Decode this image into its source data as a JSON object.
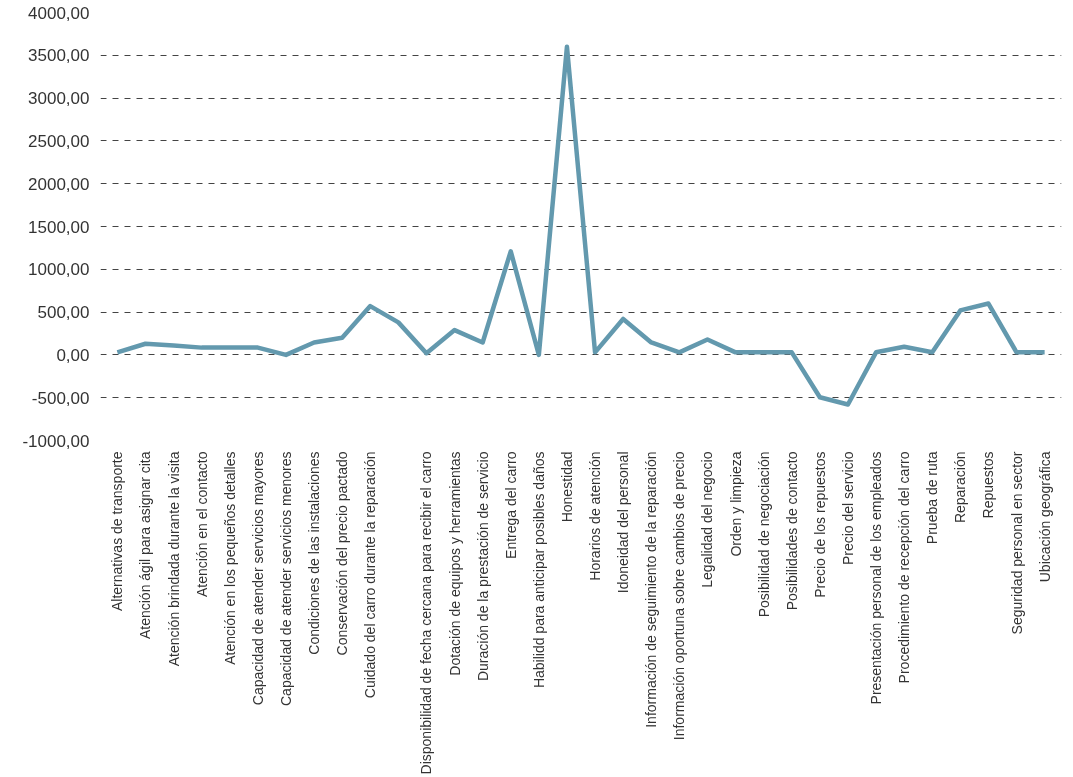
{
  "chart_data": {
    "type": "line",
    "categories": [
      "Alternativas de transporte",
      "Atención ágil para asignar cita",
      "Atención brindada durante la visita",
      "Atención en el contacto",
      "Atención en los pequeños detalles",
      "Capacidad de atender servicios mayores",
      "Capacidad de atender servicios menores",
      "Condiciones de las instalaciones",
      "Conservación del precio pactado",
      "Cuidado del carro durante la reparación",
      null,
      "Disponibilidad de fecha cercana para recibir el carro",
      "Dotación de equipos y herramientas",
      "Duración de la prestación de servicio",
      "Entrega del carro",
      "Habilidd para anticipar posibles daños",
      "Honestidad",
      "Horarios de atención",
      "Idoneidad del personal",
      "Información de seguimiento de la reparación",
      "Información oportuna sobre cambios de precio",
      "Legalidad del negocio",
      "Orden y limpieza",
      "Posibilidad de negociación",
      "Posibilidades de contacto",
      "Precio de los repuestos",
      "Precio del servicio",
      "Presentación personal de los empleados",
      "Procedimiento de recepción del carro",
      "Prueba de ruta",
      "Reparación",
      "Repuestos",
      "Seguridad personal en sector",
      "Ubicación geográfica"
    ],
    "series": [
      {
        "color": "#6399ae",
        "values": [
          30,
          130,
          110,
          85,
          85,
          85,
          0,
          145,
          200,
          570,
          380,
          20,
          290,
          145,
          1210,
          0,
          3600,
          30,
          420,
          145,
          30,
          180,
          30,
          30,
          30,
          -495,
          -580,
          30,
          95,
          30,
          520,
          600,
          30,
          30
        ]
      }
    ],
    "ylim": [
      -1000,
      4000
    ],
    "yticks": [
      {
        "value": -1000,
        "label": "-1000,00"
      },
      {
        "value": -500,
        "label": "-500,00"
      },
      {
        "value": 0,
        "label": "0,00"
      },
      {
        "value": 500,
        "label": "500,00"
      },
      {
        "value": 1000,
        "label": "1000,00"
      },
      {
        "value": 1500,
        "label": "1500,00"
      },
      {
        "value": 2000,
        "label": "2000,00"
      },
      {
        "value": 2500,
        "label": "2500,00"
      },
      {
        "value": 3000,
        "label": "3000,00"
      },
      {
        "value": 3500,
        "label": "3500,00"
      },
      {
        "value": 4000,
        "label": "4000,00"
      }
    ],
    "grid": "y",
    "line_style": "solid",
    "marker": "none"
  }
}
